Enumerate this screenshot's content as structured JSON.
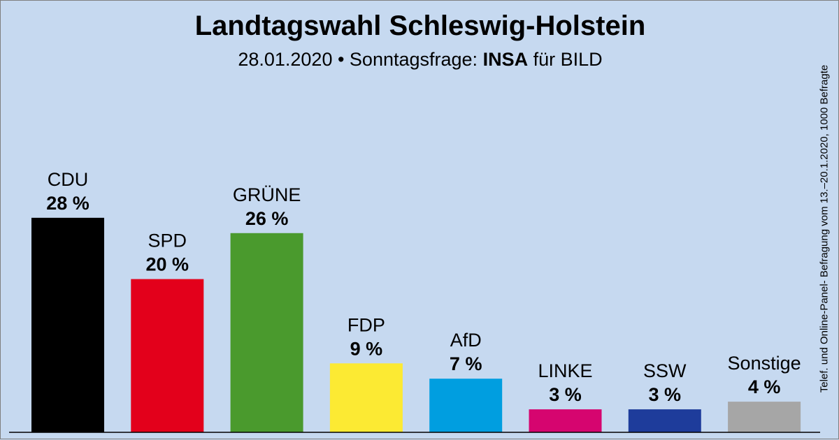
{
  "chart_data": {
    "type": "bar",
    "title": "Landtagswahl Schleswig-Holstein",
    "subtitle": {
      "prefix": "28.01.2020 • Sonntagsfrage:",
      "institute": "INSA",
      "suffix": "für BILD"
    },
    "side_note": "Telef. und Online-Panel- Befragung vom 13.–20.1.2020, 1000 Befragte",
    "unit": "%",
    "categories": [
      "CDU",
      "SPD",
      "GRÜNE",
      "FDP",
      "AfD",
      "LINKE",
      "SSW",
      "Sonstige"
    ],
    "values": [
      28,
      20,
      26,
      9,
      7,
      3,
      3,
      4
    ],
    "value_labels": [
      "28 %",
      "20 %",
      "26 %",
      "9 %",
      "7 %",
      "3 %",
      "3 %",
      "4 %"
    ],
    "colors": [
      "#000000",
      "#e3001b",
      "#4a9a2d",
      "#fcea33",
      "#009ee0",
      "#d6056f",
      "#1e3c9b",
      "#a6a6a6"
    ],
    "baseline_color": "#000000",
    "grid": false,
    "legend": "none"
  }
}
